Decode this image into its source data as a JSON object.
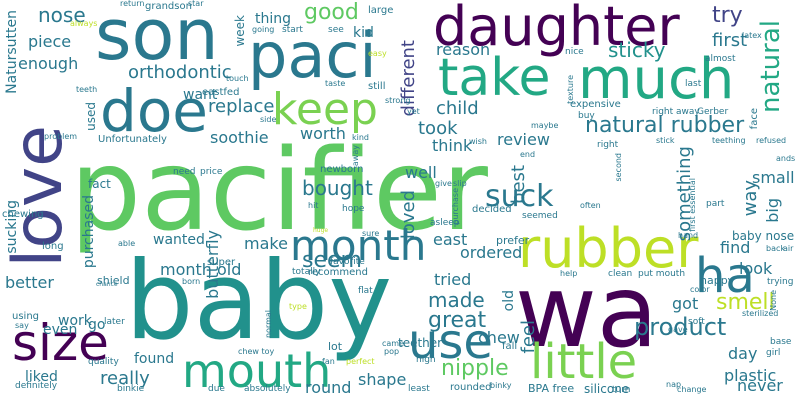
{
  "words": [
    {
      "text": "pacifier",
      "color": "#5ec962",
      "vertical": false
    },
    {
      "text": "baby",
      "color": "#21918c",
      "vertical": false
    },
    {
      "text": "wa",
      "color": "#440154",
      "vertical": false
    },
    {
      "text": "son",
      "color": "#2a788e",
      "vertical": false
    },
    {
      "text": "daughter",
      "color": "#440154",
      "vertical": false
    },
    {
      "text": "paci",
      "color": "#2a788e",
      "vertical": false
    },
    {
      "text": "love",
      "color": "#414487",
      "vertical": true
    },
    {
      "text": "much",
      "color": "#22a884",
      "vertical": false
    },
    {
      "text": "take",
      "color": "#22a884",
      "vertical": false
    },
    {
      "text": "doe",
      "color": "#2a788e",
      "vertical": false
    },
    {
      "text": "keep",
      "color": "#7ad151",
      "vertical": false
    },
    {
      "text": "rubber",
      "color": "#bddf26",
      "vertical": false
    },
    {
      "text": "month",
      "color": "#2a788e",
      "vertical": false
    },
    {
      "text": "use",
      "color": "#2a788e",
      "vertical": false
    },
    {
      "text": "ha",
      "color": "#2a788e",
      "vertical": false
    },
    {
      "text": "size",
      "color": "#440154",
      "vertical": false
    },
    {
      "text": "mouth",
      "color": "#22a884",
      "vertical": false
    },
    {
      "text": "little",
      "color": "#7ad151",
      "vertical": false
    },
    {
      "text": "natural rubber",
      "color": "#2a788e",
      "vertical": false
    },
    {
      "text": "natural",
      "color": "#22a884",
      "vertical": true
    },
    {
      "text": "try",
      "color": "#414487",
      "vertical": false
    },
    {
      "text": "orthodontic",
      "color": "#2a788e",
      "vertical": false
    },
    {
      "text": "suck",
      "color": "#2a788e",
      "vertical": false
    },
    {
      "text": "product",
      "color": "#2a788e",
      "vertical": false
    },
    {
      "text": "great",
      "color": "#2a788e",
      "vertical": false
    },
    {
      "text": "made",
      "color": "#2a788e",
      "vertical": false
    },
    {
      "text": "nipple",
      "color": "#5ec962",
      "vertical": false
    },
    {
      "text": "smell",
      "color": "#bddf26",
      "vertical": false
    },
    {
      "text": "seem",
      "color": "#2a788e",
      "vertical": false
    },
    {
      "text": "bought",
      "color": "#2a788e",
      "vertical": false
    },
    {
      "text": "nose",
      "color": "#2a788e",
      "vertical": false
    },
    {
      "text": "good",
      "color": "#5ec962",
      "vertical": false
    },
    {
      "text": "sticky",
      "color": "#21918c",
      "vertical": false
    },
    {
      "text": "first",
      "color": "#2a788e",
      "vertical": false
    },
    {
      "text": "piece",
      "color": "#2a788e",
      "vertical": false
    },
    {
      "text": "enough",
      "color": "#2a788e",
      "vertical": false
    },
    {
      "text": "reason",
      "color": "#2a788e",
      "vertical": false
    },
    {
      "text": "different",
      "color": "#414487",
      "vertical": true
    },
    {
      "text": "child",
      "color": "#2a788e",
      "vertical": false
    },
    {
      "text": "took",
      "color": "#2a788e",
      "vertical": false
    },
    {
      "text": "worth",
      "color": "#2a788e",
      "vertical": false
    },
    {
      "text": "soothie",
      "color": "#2a788e",
      "vertical": false
    },
    {
      "text": "replace",
      "color": "#2a788e",
      "vertical": false
    },
    {
      "text": "review",
      "color": "#2a788e",
      "vertical": false
    },
    {
      "text": "think",
      "color": "#2a788e",
      "vertical": false
    },
    {
      "text": "well",
      "color": "#2a788e",
      "vertical": false
    },
    {
      "text": "loved",
      "color": "#2a788e",
      "vertical": true
    },
    {
      "text": "best",
      "color": "#2a788e",
      "vertical": true
    },
    {
      "text": "something",
      "color": "#2a788e",
      "vertical": true
    },
    {
      "text": "way",
      "color": "#2a788e",
      "vertical": true
    },
    {
      "text": "small",
      "color": "#2a788e",
      "vertical": false
    },
    {
      "text": "big",
      "color": "#2a788e",
      "vertical": true
    },
    {
      "text": "find",
      "color": "#2a788e",
      "vertical": false
    },
    {
      "text": "look",
      "color": "#2a788e",
      "vertical": false
    },
    {
      "text": "got",
      "color": "#2a788e",
      "vertical": false
    },
    {
      "text": "east",
      "color": "#2a788e",
      "vertical": false
    },
    {
      "text": "ordered",
      "color": "#2a788e",
      "vertical": false
    },
    {
      "text": "tried",
      "color": "#2a788e",
      "vertical": false
    },
    {
      "text": "chew",
      "color": "#2a788e",
      "vertical": false
    },
    {
      "text": "feel",
      "color": "#2a788e",
      "vertical": true
    },
    {
      "text": "old",
      "color": "#2a788e",
      "vertical": true
    },
    {
      "text": "day",
      "color": "#2a788e",
      "vertical": false
    },
    {
      "text": "plastic",
      "color": "#2a788e",
      "vertical": false
    },
    {
      "text": "never",
      "color": "#2a788e",
      "vertical": false
    },
    {
      "text": "shape",
      "color": "#2a788e",
      "vertical": false
    },
    {
      "text": "round",
      "color": "#2a788e",
      "vertical": false
    },
    {
      "text": "really",
      "color": "#2a788e",
      "vertical": false
    },
    {
      "text": "liked",
      "color": "#2a788e",
      "vertical": false
    },
    {
      "text": "found",
      "color": "#2a788e",
      "vertical": false
    },
    {
      "text": "work",
      "color": "#2a788e",
      "vertical": false
    },
    {
      "text": "even",
      "color": "#2a788e",
      "vertical": false
    },
    {
      "text": "better",
      "color": "#2a788e",
      "vertical": false
    },
    {
      "text": "go",
      "color": "#2a788e",
      "vertical": false
    },
    {
      "text": "make",
      "color": "#2a788e",
      "vertical": false
    },
    {
      "text": "month old",
      "color": "#2a788e",
      "vertical": false
    },
    {
      "text": "wanted",
      "color": "#2a788e",
      "vertical": false
    },
    {
      "text": "butterfly",
      "color": "#2a788e",
      "vertical": true
    },
    {
      "text": "purchased",
      "color": "#2a788e",
      "vertical": true
    },
    {
      "text": "sucking",
      "color": "#2a788e",
      "vertical": true
    },
    {
      "text": "fact",
      "color": "#2a788e",
      "vertical": false
    },
    {
      "text": "used",
      "color": "#2a788e",
      "vertical": true
    },
    {
      "text": "want",
      "color": "#2a788e",
      "vertical": false
    },
    {
      "text": "thing",
      "color": "#2a788e",
      "vertical": false
    },
    {
      "text": "kid",
      "color": "#2a788e",
      "vertical": false
    },
    {
      "text": "week",
      "color": "#2a788e",
      "vertical": true
    },
    {
      "text": "Natursutten",
      "color": "#2a788e",
      "vertical": true
    },
    {
      "text": "Unfortunately",
      "color": "#2a788e",
      "vertical": false
    },
    {
      "text": "eastfed",
      "color": "#2a788e",
      "vertical": false
    },
    {
      "text": "newborn",
      "color": "#2a788e",
      "vertical": false
    },
    {
      "text": "teether",
      "color": "#2a788e",
      "vertical": false
    },
    {
      "text": "baby nose",
      "color": "#2a788e",
      "vertical": false
    },
    {
      "text": "happy",
      "color": "#2a788e",
      "vertical": false
    },
    {
      "text": "expensive",
      "color": "#2a788e",
      "vertical": false
    },
    {
      "text": "recommend",
      "color": "#2a788e",
      "vertical": false
    },
    {
      "text": "super",
      "color": "#2a788e",
      "vertical": false
    },
    {
      "text": "lot",
      "color": "#2a788e",
      "vertical": false
    },
    {
      "text": "silicone",
      "color": "#2a788e",
      "vertical": false
    },
    {
      "text": "BPA free",
      "color": "#2a788e",
      "vertical": false
    },
    {
      "text": "fall",
      "color": "#2a788e",
      "vertical": false
    },
    {
      "text": "prefer",
      "color": "#2a788e",
      "vertical": false
    },
    {
      "text": "decided",
      "color": "#2a788e",
      "vertical": false
    },
    {
      "text": "shield",
      "color": "#2a788e",
      "vertical": false
    },
    {
      "text": "long",
      "color": "#2a788e",
      "vertical": false
    },
    {
      "text": "chewing",
      "color": "#2a788e",
      "vertical": false
    },
    {
      "text": "problem",
      "color": "#2a788e",
      "vertical": false
    },
    {
      "text": "teeth",
      "color": "#2a788e",
      "vertical": false
    },
    {
      "text": "always",
      "color": "#bddf26",
      "vertical": false
    },
    {
      "text": "grandson",
      "color": "#2a788e",
      "vertical": false
    },
    {
      "text": "return",
      "color": "#2a788e",
      "vertical": false
    },
    {
      "text": "star",
      "color": "#2a788e",
      "vertical": false
    },
    {
      "text": "large",
      "color": "#2a788e",
      "vertical": false
    },
    {
      "text": "going",
      "color": "#2a788e",
      "vertical": false
    },
    {
      "text": "start",
      "color": "#2a788e",
      "vertical": false
    },
    {
      "text": "see",
      "color": "#2a788e",
      "vertical": false
    },
    {
      "text": "easy",
      "color": "#bddf26",
      "vertical": false
    },
    {
      "text": "nice",
      "color": "#2a788e",
      "vertical": false
    },
    {
      "text": "buy",
      "color": "#2a788e",
      "vertical": false
    },
    {
      "text": "texture",
      "color": "#2a788e",
      "vertical": true
    },
    {
      "text": "almost",
      "color": "#2a788e",
      "vertical": false
    },
    {
      "text": "latex",
      "color": "#2a788e",
      "vertical": false
    },
    {
      "text": "last",
      "color": "#2a788e",
      "vertical": false
    },
    {
      "text": "face",
      "color": "#2a788e",
      "vertical": true
    },
    {
      "text": "right away",
      "color": "#2a788e",
      "vertical": false
    },
    {
      "text": "Gerber",
      "color": "#2a788e",
      "vertical": false
    },
    {
      "text": "teething",
      "color": "#2a788e",
      "vertical": false
    },
    {
      "text": "refused",
      "color": "#2a788e",
      "vertical": false
    },
    {
      "text": "stick",
      "color": "#2a788e",
      "vertical": false
    },
    {
      "text": "right",
      "color": "#2a788e",
      "vertical": false
    },
    {
      "text": "end",
      "color": "#2a788e",
      "vertical": false
    },
    {
      "text": "second",
      "color": "#2a788e",
      "vertical": true
    },
    {
      "text": "part",
      "color": "#2a788e",
      "vertical": false
    },
    {
      "text": "first essential",
      "color": "#2a788e",
      "vertical": true
    },
    {
      "text": "hand",
      "color": "#2a788e",
      "vertical": false
    },
    {
      "text": "ands",
      "color": "#2a788e",
      "vertical": false
    },
    {
      "text": "often",
      "color": "#2a788e",
      "vertical": false
    },
    {
      "text": "seemed",
      "color": "#2a788e",
      "vertical": false
    },
    {
      "text": "slip",
      "color": "#2a788e",
      "vertical": false
    },
    {
      "text": "give",
      "color": "#2a788e",
      "vertical": false
    },
    {
      "text": "hope",
      "color": "#2a788e",
      "vertical": false
    },
    {
      "text": "asleep",
      "color": "#2a788e",
      "vertical": false
    },
    {
      "text": "purchase",
      "color": "#2a788e",
      "vertical": true
    },
    {
      "text": "need",
      "color": "#2a788e",
      "vertical": false
    },
    {
      "text": "price",
      "color": "#2a788e",
      "vertical": false
    },
    {
      "text": "hit",
      "color": "#2a788e",
      "vertical": false
    },
    {
      "text": "able",
      "color": "#2a788e",
      "vertical": false
    },
    {
      "text": "huge",
      "color": "#bddf26",
      "vertical": false
    },
    {
      "text": "totally",
      "color": "#2a788e",
      "vertical": false
    },
    {
      "text": "born",
      "color": "#2a788e",
      "vertical": false
    },
    {
      "text": "flat",
      "color": "#2a788e",
      "vertical": false
    },
    {
      "text": "favorite",
      "color": "#2a788e",
      "vertical": false
    },
    {
      "text": "help",
      "color": "#2a788e",
      "vertical": false
    },
    {
      "text": "clean",
      "color": "#2a788e",
      "vertical": false
    },
    {
      "text": "put mouth",
      "color": "#2a788e",
      "vertical": false
    },
    {
      "text": "color",
      "color": "#2a788e",
      "vertical": false
    },
    {
      "text": "soft",
      "color": "#2a788e",
      "vertical": false
    },
    {
      "text": "gave",
      "color": "#2a788e",
      "vertical": false
    },
    {
      "text": "base",
      "color": "#2a788e",
      "vertical": false
    },
    {
      "text": "girl",
      "color": "#2a788e",
      "vertical": false
    },
    {
      "text": "sterilized",
      "color": "#2a788e",
      "vertical": false
    },
    {
      "text": "trying",
      "color": "#2a788e",
      "vertical": false
    },
    {
      "text": "None",
      "color": "#2a788e",
      "vertical": true
    },
    {
      "text": "back",
      "color": "#2a788e",
      "vertical": false
    },
    {
      "text": "air",
      "color": "#2a788e",
      "vertical": false
    },
    {
      "text": "say",
      "color": "#2a788e",
      "vertical": false
    },
    {
      "text": "using",
      "color": "#2a788e",
      "vertical": false
    },
    {
      "text": "quality",
      "color": "#2a788e",
      "vertical": false
    },
    {
      "text": "later",
      "color": "#2a788e",
      "vertical": false
    },
    {
      "text": "definitely",
      "color": "#2a788e",
      "vertical": false
    },
    {
      "text": "binkie",
      "color": "#2a788e",
      "vertical": false
    },
    {
      "text": "due",
      "color": "#2a788e",
      "vertical": false
    },
    {
      "text": "absolutely",
      "color": "#2a788e",
      "vertical": false
    },
    {
      "text": "least",
      "color": "#2a788e",
      "vertical": false
    },
    {
      "text": "rounded",
      "color": "#2a788e",
      "vertical": false
    },
    {
      "text": "turn",
      "color": "#2a788e",
      "vertical": false
    },
    {
      "text": "change",
      "color": "#2a788e",
      "vertical": false
    },
    {
      "text": "nap",
      "color": "#2a788e",
      "vertical": false
    },
    {
      "text": "chew toy",
      "color": "#2a788e",
      "vertical": false
    },
    {
      "text": "fan",
      "color": "#2a788e",
      "vertical": false
    },
    {
      "text": "pop",
      "color": "#2a788e",
      "vertical": false
    },
    {
      "text": "high",
      "color": "#2a788e",
      "vertical": false
    },
    {
      "text": "came",
      "color": "#2a788e",
      "vertical": false
    },
    {
      "text": "binky",
      "color": "#2a788e",
      "vertical": false
    },
    {
      "text": "perfect",
      "color": "#bddf26",
      "vertical": false
    },
    {
      "text": "type",
      "color": "#bddf26",
      "vertical": false
    },
    {
      "text": "normal",
      "color": "#2a788e",
      "vertical": true
    },
    {
      "text": "chance",
      "color": "#2a788e",
      "vertical": false
    },
    {
      "text": "taste",
      "color": "#2a788e",
      "vertical": false
    },
    {
      "text": "touch",
      "color": "#2a788e",
      "vertical": false
    },
    {
      "text": "side",
      "color": "#2a788e",
      "vertical": false
    },
    {
      "text": "kind",
      "color": "#2a788e",
      "vertical": false
    },
    {
      "text": "strong",
      "color": "#2a788e",
      "vertical": false
    },
    {
      "text": "yet",
      "color": "#2a788e",
      "vertical": false
    },
    {
      "text": "wish",
      "color": "#2a788e",
      "vertical": false
    },
    {
      "text": "maybe",
      "color": "#2a788e",
      "vertical": false
    },
    {
      "text": "still",
      "color": "#2a788e",
      "vertical": false
    },
    {
      "text": "away",
      "color": "#2a788e",
      "vertical": true
    },
    {
      "text": "sure",
      "color": "#2a788e",
      "vertical": false
    }
  ]
}
